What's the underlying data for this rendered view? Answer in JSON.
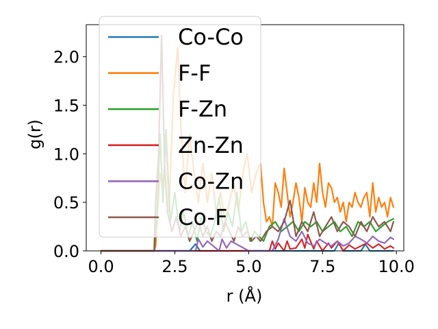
{
  "chart_data": {
    "type": "line",
    "xlabel": "r (Å)",
    "ylabel": "g(r)",
    "xlim": [
      -0.5,
      10.25
    ],
    "ylim": [
      0,
      2.33
    ],
    "xticks": [
      0.0,
      2.5,
      5.0,
      7.5,
      10.0
    ],
    "xtick_labels": [
      "0.0",
      "2.5",
      "5.0",
      "7.5",
      "10.0"
    ],
    "yticks": [
      0.0,
      0.5,
      1.0,
      1.5,
      2.0
    ],
    "ytick_labels": [
      "0.0",
      "0.5",
      "1.0",
      "1.5",
      "2.0"
    ],
    "grid": false,
    "legend_position": "upper-left",
    "series": [
      {
        "name": "Co-Co",
        "color": "#1f77b4",
        "x": [
          0.0,
          0.5,
          1.0,
          1.5,
          2.0,
          2.5,
          3.0,
          3.2,
          3.35,
          3.5,
          4.0,
          4.5,
          5.0,
          5.5,
          6.0,
          6.5,
          7.0,
          7.5,
          7.9,
          8.05,
          8.2,
          8.6,
          8.8,
          8.95,
          9.1,
          9.5,
          9.9
        ],
        "values": [
          0,
          0,
          0,
          0,
          0,
          0,
          0,
          0.07,
          0.0,
          0,
          0,
          0,
          0,
          0,
          0,
          0,
          0,
          0,
          0,
          0.08,
          0,
          0,
          0,
          0.07,
          0,
          0,
          0
        ]
      },
      {
        "name": "F-F",
        "color": "#ff7f0e",
        "x": [
          0.0,
          1.5,
          1.8,
          1.85,
          2.0,
          2.1,
          2.2,
          2.3,
          2.45,
          2.6,
          2.7,
          2.85,
          3.0,
          3.15,
          3.3,
          3.45,
          3.6,
          3.75,
          3.9,
          4.05,
          4.2,
          4.35,
          4.5,
          4.65,
          4.8,
          4.95,
          5.1,
          5.25,
          5.4,
          5.5,
          5.6,
          5.7,
          5.8,
          5.9,
          6.0,
          6.1,
          6.2,
          6.3,
          6.4,
          6.5,
          6.6,
          6.7,
          6.8,
          6.9,
          7.0,
          7.1,
          7.2,
          7.3,
          7.4,
          7.5,
          7.6,
          7.7,
          7.8,
          7.9,
          8.0,
          8.1,
          8.2,
          8.3,
          8.4,
          8.5,
          8.6,
          8.7,
          8.8,
          8.9,
          9.0,
          9.1,
          9.2,
          9.3,
          9.4,
          9.5,
          9.6,
          9.7,
          9.8,
          9.9
        ],
        "values": [
          0,
          0,
          0,
          0.05,
          0.8,
          0.6,
          1.2,
          0.4,
          1.6,
          2.1,
          1.3,
          0.6,
          1.2,
          0.8,
          0.5,
          0.9,
          0.5,
          0.8,
          0.4,
          0.6,
          0.3,
          0.5,
          0.7,
          0.4,
          0.8,
          1.0,
          0.6,
          0.8,
          0.9,
          0.5,
          0.3,
          0.35,
          0.25,
          0.7,
          0.6,
          0.45,
          0.85,
          0.6,
          0.35,
          0.5,
          0.7,
          0.55,
          0.3,
          0.65,
          0.5,
          0.45,
          0.7,
          0.5,
          0.9,
          0.6,
          0.45,
          0.7,
          0.65,
          0.5,
          0.55,
          0.4,
          0.5,
          0.3,
          0.5,
          0.45,
          0.6,
          0.5,
          0.45,
          0.55,
          0.6,
          0.35,
          0.7,
          0.4,
          0.55,
          0.45,
          0.5,
          0.35,
          0.55,
          0.45
        ]
      },
      {
        "name": "F-Zn",
        "color": "#2ca02c",
        "x": [
          0.0,
          1.5,
          1.8,
          1.9,
          2.0,
          2.1,
          2.2,
          2.35,
          2.5,
          2.65,
          2.8,
          2.95,
          3.1,
          3.25,
          3.4,
          3.55,
          3.7,
          3.85,
          4.0,
          4.15,
          4.3,
          4.45,
          4.6,
          4.75,
          4.9,
          5.05,
          5.2,
          5.35,
          5.5,
          5.7,
          5.9,
          6.1,
          6.3,
          6.5,
          6.7,
          6.9,
          7.1,
          7.3,
          7.5,
          7.7,
          7.9,
          8.1,
          8.3,
          8.5,
          8.7,
          8.9,
          9.1,
          9.3,
          9.5,
          9.7,
          9.9
        ],
        "values": [
          0,
          0,
          0,
          0.4,
          1.2,
          0.5,
          1.25,
          0.3,
          0.6,
          0.2,
          0.4,
          0.15,
          0.3,
          0.1,
          0.35,
          0.2,
          0.15,
          0.3,
          0.55,
          0.2,
          0.4,
          0.25,
          0.6,
          0.2,
          0.3,
          0.1,
          0.2,
          0.15,
          0.1,
          0.25,
          0.3,
          0.2,
          0.25,
          0.3,
          0.2,
          0.3,
          0.25,
          0.3,
          0.2,
          0.25,
          0.3,
          0.2,
          0.25,
          0.15,
          0.3,
          0.25,
          0.3,
          0.2,
          0.25,
          0.3,
          0.33
        ]
      },
      {
        "name": "Zn-Zn",
        "color": "#d62728",
        "x": [
          0.0,
          5.5,
          5.7,
          5.8,
          5.9,
          6.0,
          6.2,
          6.3,
          6.4,
          6.6,
          6.8,
          6.9,
          7.0,
          7.2,
          7.3,
          7.5,
          7.7,
          7.8,
          8.0,
          8.2,
          8.4,
          8.6,
          8.8,
          9.0,
          9.2,
          9.4,
          9.6,
          9.8,
          9.9
        ],
        "values": [
          0,
          0,
          0,
          0.1,
          0.02,
          0.08,
          0.0,
          0.1,
          0.02,
          0.03,
          0.12,
          0.03,
          0.17,
          0.02,
          0.1,
          0.0,
          0.08,
          0.03,
          0.1,
          0.0,
          0.06,
          0.02,
          0.05,
          0.08,
          0.03,
          0.07,
          0.02,
          0.05,
          0.03
        ]
      },
      {
        "name": "Co-Zn",
        "color": "#9467bd",
        "x": [
          0.0,
          3.2,
          3.3,
          3.45,
          3.6,
          4.0,
          4.1,
          4.25,
          4.4,
          5.0,
          5.8,
          6.0,
          6.2,
          6.4,
          6.6,
          6.8,
          7.0,
          7.2,
          7.4,
          7.6,
          7.8,
          8.0,
          8.2,
          8.4,
          8.6,
          8.8,
          9.0,
          9.2,
          9.4,
          9.6,
          9.8,
          9.9
        ],
        "values": [
          0,
          0,
          0.12,
          0.04,
          0.1,
          0,
          0.12,
          0.03,
          0.1,
          0,
          0,
          0.12,
          0.33,
          0.15,
          0.1,
          0.2,
          0.08,
          0.05,
          0.12,
          0.08,
          0.05,
          0.1,
          0.05,
          0.08,
          0.15,
          0.12,
          0.08,
          0.15,
          0.1,
          0.08,
          0.14,
          0.12
        ]
      },
      {
        "name": "Co-F",
        "color": "#8c564b",
        "x": [
          0.0,
          1.5,
          1.8,
          1.85,
          1.95,
          2.05,
          2.15,
          2.25,
          2.4,
          2.55,
          2.7,
          2.85,
          3.0,
          3.15,
          3.3,
          3.45,
          3.6,
          3.75,
          3.9,
          4.05,
          4.2,
          4.35,
          4.5,
          4.65,
          4.8,
          4.95,
          5.1,
          5.25,
          5.4,
          5.6,
          5.8,
          6.0,
          6.2,
          6.4,
          6.6,
          6.8,
          7.0,
          7.2,
          7.4,
          7.6,
          7.8,
          8.0,
          8.2,
          8.4,
          8.6,
          8.8,
          9.0,
          9.2,
          9.4,
          9.6,
          9.8,
          9.9
        ],
        "values": [
          0,
          0,
          0,
          0.5,
          1.0,
          2.22,
          0.9,
          0.4,
          0.2,
          0.35,
          0.15,
          0.25,
          0.1,
          0.2,
          0.3,
          0.15,
          0.25,
          0.1,
          0.2,
          0.15,
          0.3,
          0.2,
          0.1,
          0.25,
          0.15,
          0.2,
          0.1,
          0.15,
          0.1,
          0.2,
          0.25,
          0.2,
          0.3,
          0.52,
          0.15,
          0.3,
          0.2,
          0.4,
          0.15,
          0.25,
          0.35,
          0.2,
          0.3,
          0.25,
          0.15,
          0.3,
          0.2,
          0.35,
          0.25,
          0.3,
          0.2,
          0.3
        ]
      }
    ]
  }
}
